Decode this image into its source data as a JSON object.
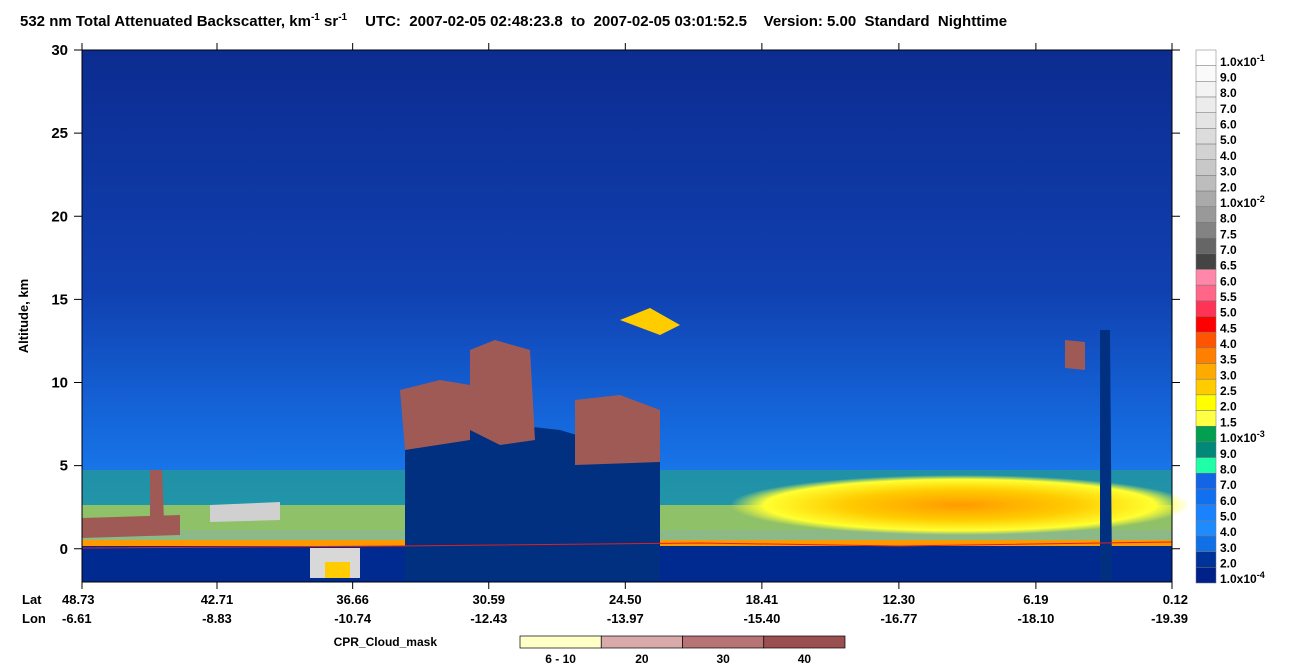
{
  "chart_data": {
    "type": "curtain",
    "title": {
      "main": "532 nm Total Attenuated Backscatter, km",
      "sup1": "-1",
      "unit2": " sr",
      "sup2": "-1",
      "info": "UTC:  2007-02-05 02:48:23.8  to  2007-02-05 03:01:52.5    Version: 5.00  Standard  Nighttime"
    },
    "y_label": "Altitude, km",
    "ylim": [
      -2,
      30
    ],
    "yticks": [
      0,
      5,
      10,
      15,
      20,
      25,
      30
    ],
    "x_row_labels": [
      "Lat",
      "Lon"
    ],
    "xlim": [
      48.73,
      0.12
    ],
    "xticks": [
      48.73,
      42.71,
      36.66,
      30.59,
      {
        "value": 24.5,
        "label": "24.50"
      },
      18.41,
      {
        "value": 12.3,
        "label": "12.30"
      },
      6.19,
      0.12
    ],
    "lon_labels": [
      "-6.61",
      "-8.83",
      "-10.74",
      "-12.43",
      "-13.97",
      "-15.40",
      "-16.77",
      "-18.10",
      "-19.39"
    ],
    "colorbar": [
      {
        "label": "1.0x10",
        "exp": "-1",
        "color": "#ffffff"
      },
      {
        "label": "9.0",
        "color": "#fafafa"
      },
      {
        "label": "8.0",
        "color": "#f3f3f3"
      },
      {
        "label": "7.0",
        "color": "#ececec"
      },
      {
        "label": "6.0",
        "color": "#e4e4e4"
      },
      {
        "label": "5.0",
        "color": "#dcdcdc"
      },
      {
        "label": "4.0",
        "color": "#d2d2d2"
      },
      {
        "label": "3.0",
        "color": "#c8c8c8"
      },
      {
        "label": "2.0",
        "color": "#bdbdbd"
      },
      {
        "label": "1.0x10",
        "exp": "-2",
        "color": "#aaaaaa"
      },
      {
        "label": "8.0",
        "color": "#999999"
      },
      {
        "label": "7.5",
        "color": "#838383"
      },
      {
        "label": "7.0",
        "color": "#666666"
      },
      {
        "label": "6.5",
        "color": "#444444"
      },
      {
        "label": "6.0",
        "color": "#ff88aa"
      },
      {
        "label": "5.5",
        "color": "#ff6688"
      },
      {
        "label": "5.0",
        "color": "#ff3355"
      },
      {
        "label": "4.5",
        "color": "#ff0000"
      },
      {
        "label": "4.0",
        "color": "#ff5500"
      },
      {
        "label": "3.5",
        "color": "#ff7f00"
      },
      {
        "label": "3.0",
        "color": "#ffaa00"
      },
      {
        "label": "2.5",
        "color": "#ffcc00"
      },
      {
        "label": "2.0",
        "color": "#ffff00"
      },
      {
        "label": "1.5",
        "color": "#ffff44"
      },
      {
        "label": "1.0x10",
        "exp": "-3",
        "color": "#00a050"
      },
      {
        "label": "9.0",
        "color": "#008878"
      },
      {
        "label": "8.0",
        "color": "#20ffa8"
      },
      {
        "label": "7.0",
        "color": "#1464e6"
      },
      {
        "label": "6.0",
        "color": "#1070f0"
      },
      {
        "label": "5.0",
        "color": "#1a82ff"
      },
      {
        "label": "4.0",
        "color": "#1e8cff"
      },
      {
        "label": "3.0",
        "color": "#1070e8"
      },
      {
        "label": "2.0",
        "color": "#00339a"
      },
      {
        "label": "1.0x10",
        "exp": "-4",
        "color": "#002288"
      }
    ],
    "mask_title": "CPR_Cloud_mask",
    "mask_legend": [
      {
        "label": "6 - 10",
        "color": "#ffffc8"
      },
      {
        "label": "20",
        "color": "#d8aaaa"
      },
      {
        "label": "30",
        "color": "#b87474"
      },
      {
        "label": "40",
        "color": "#9a5050"
      }
    ]
  }
}
